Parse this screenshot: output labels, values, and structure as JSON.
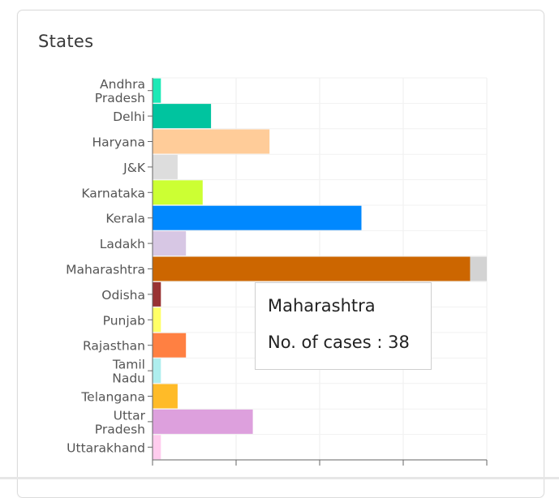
{
  "card": {
    "title": "States"
  },
  "tooltip": {
    "title": "Maharashtra",
    "label": "No. of cases : 38"
  },
  "chart_data": {
    "type": "bar",
    "orientation": "horizontal",
    "title": "",
    "xlabel": "",
    "ylabel": "",
    "xlim": [
      0,
      40
    ],
    "grid": true,
    "categories": [
      "Andhra Pradesh",
      "Delhi",
      "Haryana",
      "J&K",
      "Karnataka",
      "Kerala",
      "Ladakh",
      "Maharashtra",
      "Odisha",
      "Punjab",
      "Rajasthan",
      "Tamil Nadu",
      "Telangana",
      "Uttar Pradesh",
      "Uttarakhand"
    ],
    "tick_lines": [
      [
        "Andhra",
        "Pradesh"
      ],
      [
        "Delhi"
      ],
      [
        "Haryana"
      ],
      [
        "J&K"
      ],
      [
        "Karnataka"
      ],
      [
        "Kerala"
      ],
      [
        "Ladakh"
      ],
      [
        "Maharashtra"
      ],
      [
        "Odisha"
      ],
      [
        "Punjab"
      ],
      [
        "Rajasthan"
      ],
      [
        "Tamil",
        "Nadu"
      ],
      [
        "Telangana"
      ],
      [
        "Uttar",
        "Pradesh"
      ],
      [
        "Uttarakhand"
      ]
    ],
    "values": [
      1,
      7,
      14,
      3,
      6,
      25,
      4,
      38,
      1,
      1,
      4,
      1,
      3,
      12,
      1
    ],
    "colors": [
      "#1de9b6",
      "#00c49f",
      "#ffcc99",
      "#dddddd",
      "#ccff33",
      "#0088fe",
      "#d7c7e4",
      "#cc6600",
      "#993333",
      "#ffff66",
      "#ff8042",
      "#aeeeee",
      "#ffbb28",
      "#dda0dd",
      "#ffccee"
    ],
    "hover_index": 7,
    "hover_color": "#d3d3d3"
  }
}
